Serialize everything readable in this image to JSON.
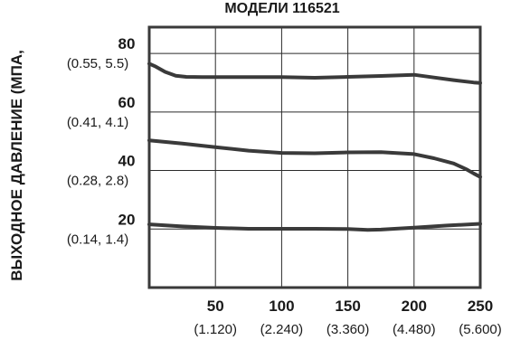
{
  "chart_data": {
    "type": "line",
    "title": "МОДЕЛИ 116521",
    "ylabel": "ВЫХОДНОЕ ДАВЛЕНИЕ (МПА,",
    "xlabel": "",
    "xlim": [
      0,
      250
    ],
    "ylim": [
      0,
      89
    ],
    "grid": true,
    "x_ticks": [
      {
        "value": 50,
        "label": "50",
        "sublabel": "(1.120)"
      },
      {
        "value": 100,
        "label": "100",
        "sublabel": "(2.240)"
      },
      {
        "value": 150,
        "label": "150",
        "sublabel": "(3.360)"
      },
      {
        "value": 200,
        "label": "200",
        "sublabel": "(4.480)"
      },
      {
        "value": 250,
        "label": "250",
        "sublabel": "(5.600)"
      }
    ],
    "y_ticks": [
      {
        "value": 20,
        "label": "20",
        "sublabel": "(0.14, 1.4)"
      },
      {
        "value": 40,
        "label": "40",
        "sublabel": "(0.28, 2.8)"
      },
      {
        "value": 60,
        "label": "60",
        "sublabel": "(0.41, 4.1)"
      },
      {
        "value": 80,
        "label": "80",
        "sublabel": "(0.55, 5.5)"
      }
    ],
    "series": [
      {
        "x": [
          0,
          5,
          12,
          20,
          28,
          40,
          60,
          80,
          100,
          125,
          150,
          175,
          200,
          215,
          230,
          245,
          250
        ],
        "y": [
          76.5,
          75.5,
          73.7,
          72.4,
          72.0,
          71.9,
          71.9,
          71.9,
          71.9,
          71.7,
          72.0,
          72.3,
          72.7,
          71.8,
          70.9,
          70.1,
          69.9
        ]
      },
      {
        "x": [
          0,
          25,
          50,
          75,
          100,
          125,
          150,
          175,
          200,
          215,
          230,
          240,
          245,
          250
        ],
        "y": [
          50.3,
          49.2,
          48.0,
          46.8,
          46.0,
          45.9,
          46.2,
          46.3,
          45.6,
          44.2,
          42.4,
          40.3,
          39.0,
          37.8
        ]
      },
      {
        "x": [
          0,
          25,
          50,
          75,
          100,
          125,
          150,
          165,
          175,
          200,
          225,
          250
        ],
        "y": [
          21.6,
          20.9,
          20.4,
          20.1,
          20.1,
          20.1,
          20.0,
          19.7,
          19.8,
          20.5,
          21.2,
          21.8
        ]
      }
    ],
    "colors": {
      "line": "#3a3a3a",
      "grid": "#2a2a2a",
      "frame": "#3a3a3a"
    }
  }
}
